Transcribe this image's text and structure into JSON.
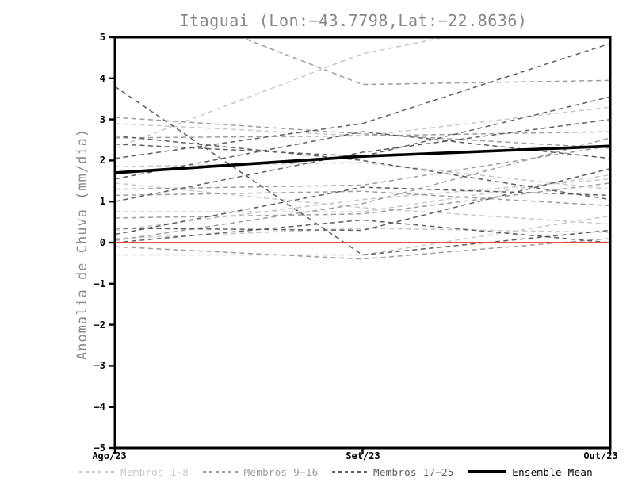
{
  "page": {
    "background": "#ffffff"
  },
  "chart_data": {
    "type": "line",
    "title": "Itaguai (Lon:−43.7798,Lat:−22.8636)",
    "ylabel": "Anomalia de Chuva (mm/dia)",
    "xlabel": "",
    "x_categories": [
      "Ago/23",
      "Set/23",
      "Out/23"
    ],
    "ylim": [
      -5,
      5
    ],
    "yticks": [
      5,
      4,
      3,
      2,
      1,
      0,
      -1,
      -2,
      -3,
      -4,
      -5
    ],
    "grid": false,
    "frame_color": "#000000",
    "zero_line": {
      "value": 0,
      "color": "#f04646",
      "width": 2
    },
    "ensemble_mean": {
      "label": "Ensemble Mean",
      "color": "#000000",
      "line_width": 3.6,
      "values": [
        1.7,
        2.1,
        2.35
      ]
    },
    "member_groups": [
      {
        "label": "Membros 1−8",
        "color": "#c8c8c8",
        "style": "dashed",
        "members": [
          [
            2.9,
            2.6,
            3.3
          ],
          [
            1.85,
            1.95,
            1.3
          ],
          [
            1.45,
            0.85,
            0.45
          ],
          [
            0.75,
            0.75,
            1.65
          ],
          [
            0.3,
            1.05,
            1.55
          ],
          [
            0.1,
            0.35,
            0.25
          ],
          [
            -0.3,
            -0.3,
            0.65
          ],
          [
            2.3,
            4.6,
            5.8
          ]
        ]
      },
      {
        "label": "Membros 9−16",
        "color": "#9d9d9d",
        "style": "dashed",
        "members": [
          [
            3.05,
            2.65,
            2.3
          ],
          [
            2.55,
            2.6,
            2.7
          ],
          [
            6.2,
            3.85,
            3.95
          ],
          [
            1.3,
            1.4,
            2.35
          ],
          [
            0.6,
            0.7,
            1.45
          ],
          [
            0.05,
            0.95,
            2.55
          ],
          [
            1.15,
            1.25,
            0.9
          ],
          [
            -0.1,
            -0.4,
            0.1
          ]
        ]
      },
      {
        "label": "Membros 17−25",
        "color": "#5e5e5e",
        "style": "dashed",
        "members": [
          [
            3.8,
            -0.3,
            0.3
          ],
          [
            2.4,
            2.1,
            3.55
          ],
          [
            2.05,
            2.9,
            4.85
          ],
          [
            1.0,
            2.2,
            3.0
          ],
          [
            0.35,
            0.3,
            1.8
          ],
          [
            0.2,
            1.35,
            1.15
          ],
          [
            1.55,
            2.7,
            2.05
          ],
          [
            2.6,
            2.0,
            1.05
          ],
          [
            0.0,
            0.55,
            0.0
          ]
        ]
      }
    ],
    "legend": [
      {
        "label": "Membros 1−8",
        "color": "#c8c8c8",
        "style": "dashed"
      },
      {
        "label": "Membros 9−16",
        "color": "#9d9d9d",
        "style": "dashed"
      },
      {
        "label": "Membros 17−25",
        "color": "#5e5e5e",
        "style": "dashed"
      },
      {
        "label": "Ensemble Mean",
        "color": "#000000",
        "style": "solid"
      }
    ],
    "legend_position": "bottom"
  }
}
